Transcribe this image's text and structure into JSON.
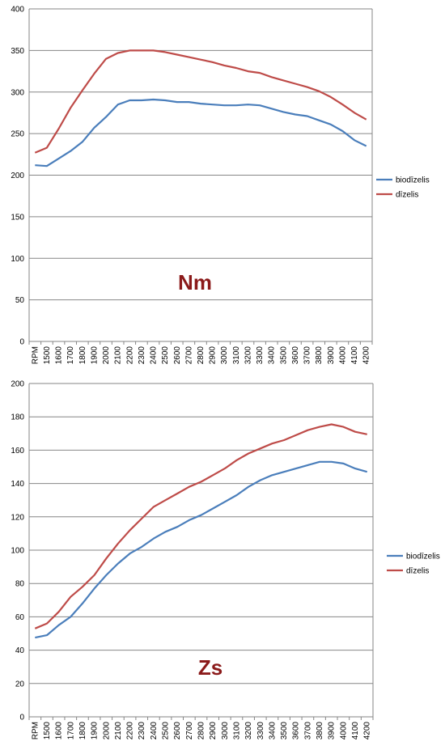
{
  "colors": {
    "biodizelis": "#4a7ebb",
    "dizelis": "#be4b48",
    "annotation": "#8b1a1a",
    "grid": "#868686",
    "axis": "#868686"
  },
  "chart_data": [
    {
      "type": "line",
      "annotation": "Nm",
      "legend_position": "right",
      "grid": true,
      "ylim": [
        0,
        400
      ],
      "yticks": [
        "0",
        "50",
        "100",
        "150",
        "200",
        "250",
        "300",
        "350",
        "400"
      ],
      "categories": [
        "RPM",
        "1500",
        "1600",
        "1700",
        "1800",
        "1900",
        "2000",
        "2100",
        "2200",
        "2300",
        "2400",
        "2500",
        "2600",
        "2700",
        "2800",
        "2900",
        "3000",
        "3100",
        "3200",
        "3300",
        "3400",
        "3500",
        "3600",
        "3700",
        "3800",
        "3900",
        "4000",
        "4100",
        "4200"
      ],
      "series": [
        {
          "name": "biodīzelis",
          "color_key": "biodizelis",
          "values": [
            212,
            211,
            220,
            229,
            240,
            257,
            270,
            285,
            290,
            290,
            291,
            290,
            288,
            288,
            286,
            285,
            284,
            284,
            285,
            284,
            280,
            276,
            273,
            271,
            266,
            261,
            253,
            242,
            235
          ]
        },
        {
          "name": "dīzelis",
          "color_key": "dizelis",
          "values": [
            227,
            233,
            256,
            281,
            302,
            322,
            340,
            347,
            350,
            350,
            350,
            348,
            345,
            342,
            339,
            336,
            332,
            329,
            325,
            323,
            318,
            314,
            310,
            306,
            301,
            294,
            285,
            275,
            267
          ]
        }
      ]
    },
    {
      "type": "line",
      "annotation": "Zs",
      "legend_position": "right",
      "grid": true,
      "ylim": [
        0,
        200
      ],
      "yticks": [
        "0",
        "20",
        "40",
        "60",
        "80",
        "100",
        "120",
        "140",
        "160",
        "180",
        "200"
      ],
      "categories": [
        "RPM",
        "1500",
        "1600",
        "1700",
        "1800",
        "1900",
        "2000",
        "2100",
        "2200",
        "2300",
        "2400",
        "2500",
        "2600",
        "2700",
        "2800",
        "2900",
        "3000",
        "3100",
        "3200",
        "3300",
        "3400",
        "3500",
        "3600",
        "3700",
        "3800",
        "3900",
        "4000",
        "4100",
        "4200"
      ],
      "series": [
        {
          "name": "biodīzelis",
          "color_key": "biodizelis",
          "values": [
            47.5,
            49,
            55,
            60,
            68,
            77,
            85,
            92,
            98,
            102,
            107,
            111,
            114,
            118,
            121,
            125,
            129,
            133,
            138,
            142,
            145,
            147,
            149,
            151,
            153,
            153,
            152,
            149,
            147
          ]
        },
        {
          "name": "dīzelis",
          "color_key": "dizelis",
          "values": [
            53,
            56,
            63,
            72,
            78,
            85,
            95,
            104,
            112,
            119,
            126,
            130,
            134,
            138,
            141,
            145,
            149,
            154,
            158,
            161,
            164,
            166,
            169,
            172,
            174,
            175.5,
            174,
            171,
            169.5
          ]
        }
      ]
    }
  ]
}
